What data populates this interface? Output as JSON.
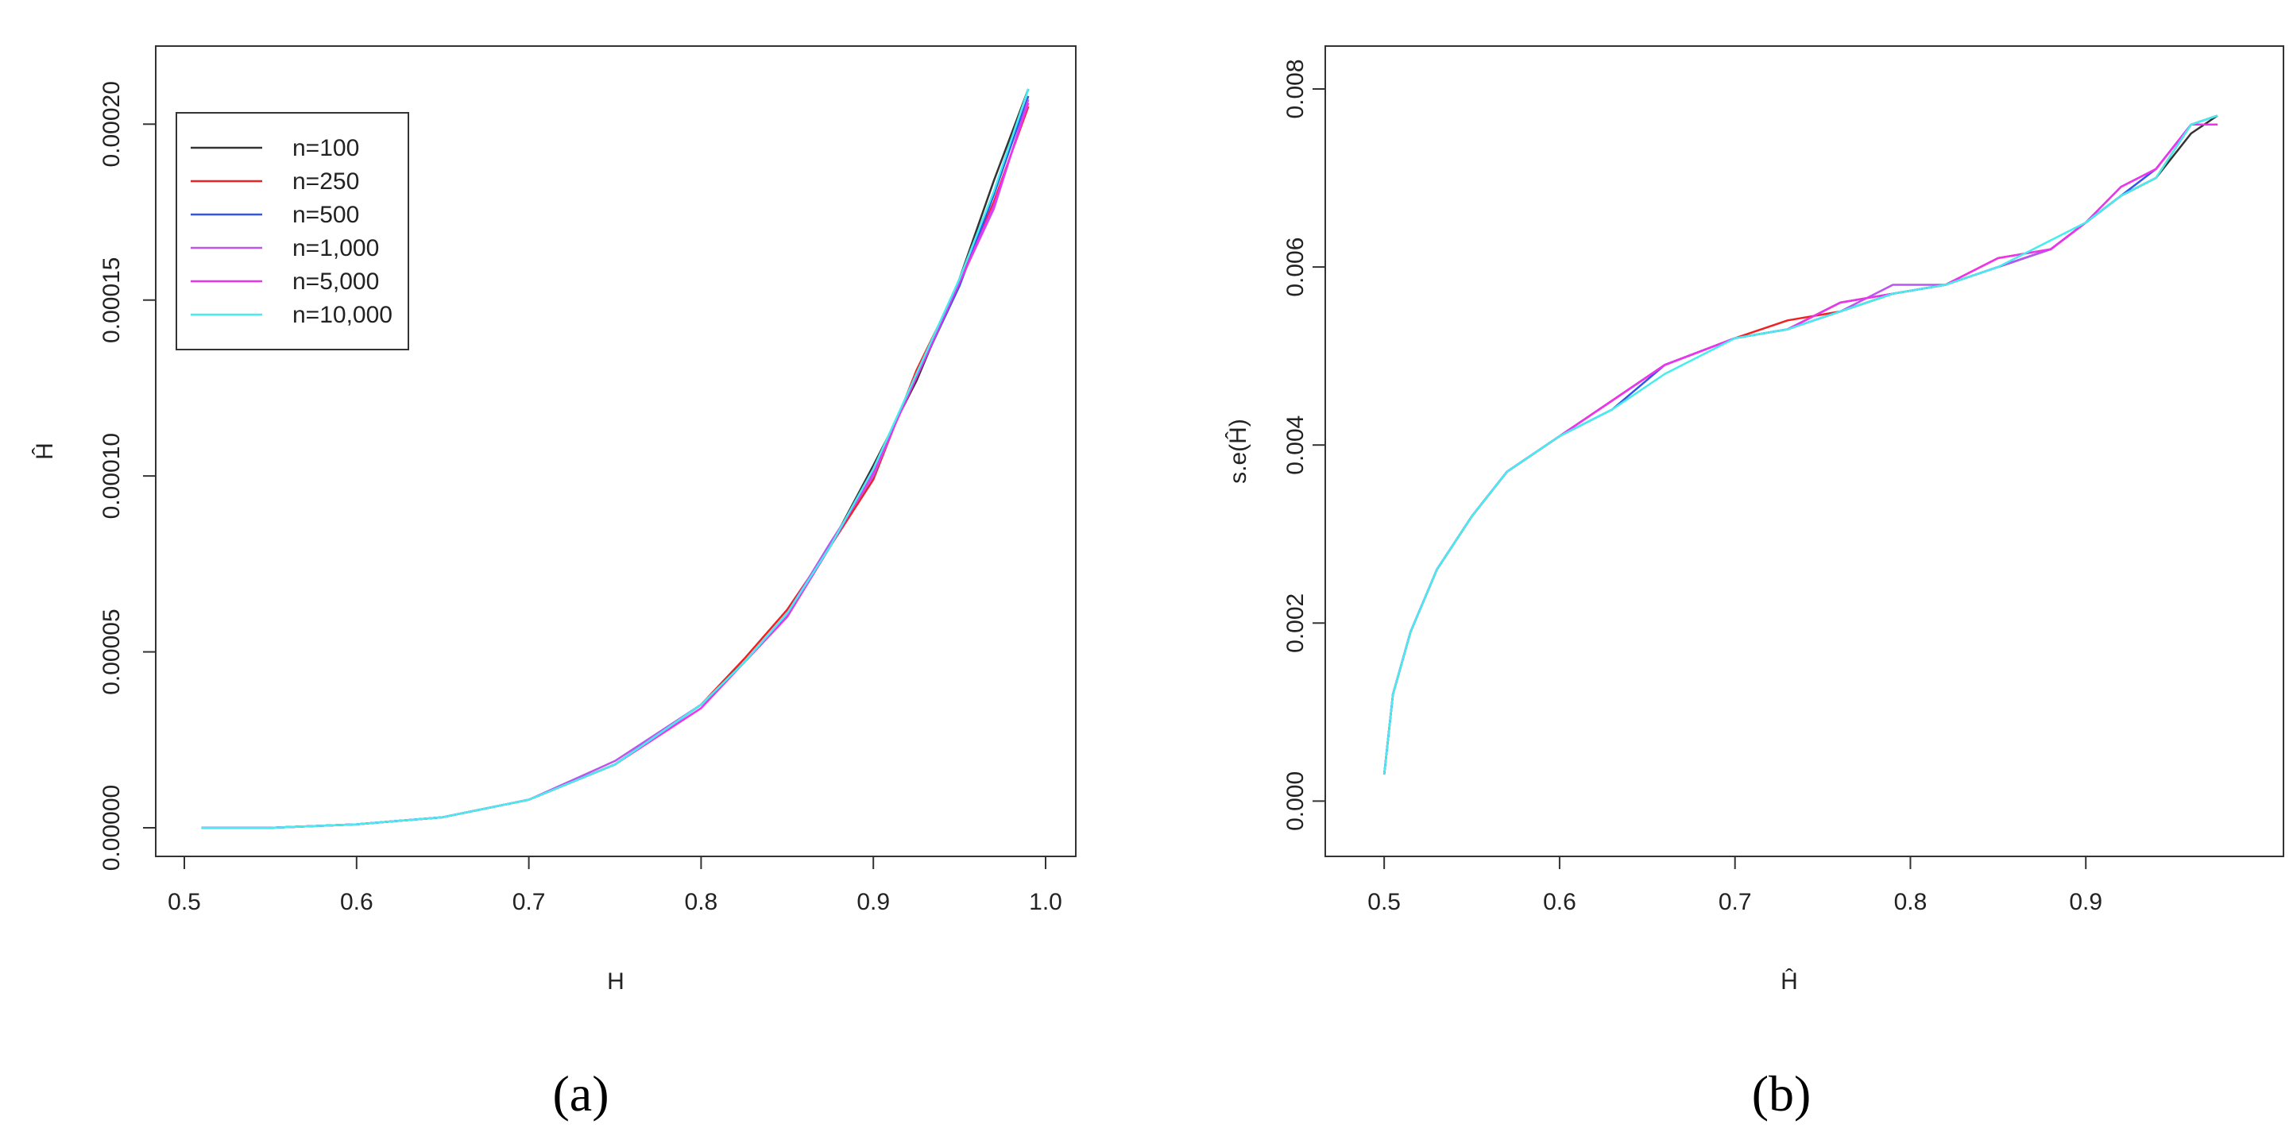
{
  "colors": {
    "n=100": "#333333",
    "n=250": "#ee2222",
    "n=500": "#3355ee",
    "n=1,000": "#bb55ee",
    "n=5,000": "#ee33ee",
    "n=10,000": "#44eeee"
  },
  "chart_data": [
    {
      "type": "line",
      "caption": "(a)",
      "xlabel": "H",
      "ylabel": "Ĥ",
      "xlim": [
        0.5,
        1.0
      ],
      "ylim": [
        0.0,
        0.00021
      ],
      "xticks": [
        0.5,
        0.6,
        0.7,
        0.8,
        0.9,
        1.0
      ],
      "xtick_labels": [
        "0.5",
        "0.6",
        "0.7",
        "0.8",
        "0.9",
        "1.0"
      ],
      "yticks": [
        0.0,
        5e-05,
        0.0001,
        0.00015,
        0.0002
      ],
      "ytick_labels": [
        "0.00000",
        "0.00005",
        "0.00010",
        "0.00015",
        "0.00020"
      ],
      "legend": {
        "position": "top-left",
        "entries": [
          "n=100",
          "n=250",
          "n=500",
          "n=1,000",
          "n=5,000",
          "n=10,000"
        ]
      },
      "x": [
        0.51,
        0.55,
        0.6,
        0.65,
        0.7,
        0.75,
        0.8,
        0.825,
        0.85,
        0.875,
        0.9,
        0.925,
        0.95,
        0.97,
        0.99
      ],
      "series": [
        {
          "name": "n=100",
          "values": [
            0.0,
            0.0,
            1e-06,
            3e-06,
            8e-06,
            1.8e-05,
            3.5e-05,
            4.7e-05,
            6e-05,
            8e-05,
            0.000103,
            0.000127,
            0.000156,
            0.000184,
            0.00021
          ]
        },
        {
          "name": "n=250",
          "values": [
            0.0,
            0.0,
            1e-06,
            3e-06,
            8e-06,
            1.8e-05,
            3.5e-05,
            4.8e-05,
            6.2e-05,
            8e-05,
            9.9e-05,
            0.00013,
            0.000155,
            0.000178,
            0.000205
          ]
        },
        {
          "name": "n=500",
          "values": [
            0.0,
            0.0,
            1e-06,
            3e-06,
            8e-06,
            1.8e-05,
            3.5e-05,
            4.7e-05,
            6.1e-05,
            8e-05,
            0.000102,
            0.000128,
            0.000154,
            0.00018,
            0.000208
          ]
        },
        {
          "name": "n=1,000",
          "values": [
            0.0,
            0.0,
            1e-06,
            3e-06,
            8e-06,
            1.9e-05,
            3.5e-05,
            4.7e-05,
            6.1e-05,
            8.1e-05,
            0.0001,
            0.000129,
            0.000155,
            0.000176,
            0.000207
          ]
        },
        {
          "name": "n=5,000",
          "values": [
            0.0,
            0.0,
            1e-06,
            3e-06,
            8e-06,
            1.8e-05,
            3.4e-05,
            4.7e-05,
            6e-05,
            8e-05,
            0.000101,
            0.000128,
            0.000155,
            0.000177,
            0.000206
          ]
        },
        {
          "name": "n=10,000",
          "values": [
            0.0,
            0.0,
            1e-06,
            3e-06,
            8e-06,
            1.8e-05,
            3.5e-05,
            4.7e-05,
            6.1e-05,
            8e-05,
            0.000102,
            0.000129,
            0.000156,
            0.000181,
            0.00021
          ]
        }
      ]
    },
    {
      "type": "line",
      "caption": "(b)",
      "xlabel": "Ĥ",
      "ylabel": "s.e(Ĥ)",
      "xlim": [
        0.48,
        1.0
      ],
      "ylim": [
        -0.0003,
        0.008
      ],
      "xticks": [
        0.5,
        0.6,
        0.7,
        0.8,
        0.9
      ],
      "xtick_labels": [
        "0.5",
        "0.6",
        "0.7",
        "0.8",
        "0.9"
      ],
      "yticks": [
        0.0,
        0.002,
        0.004,
        0.006,
        0.008
      ],
      "ytick_labels": [
        "0.000",
        "0.002",
        "0.004",
        "0.006",
        "0.008"
      ],
      "x": [
        0.5,
        0.505,
        0.515,
        0.53,
        0.55,
        0.57,
        0.6,
        0.63,
        0.66,
        0.7,
        0.73,
        0.76,
        0.79,
        0.82,
        0.85,
        0.88,
        0.9,
        0.92,
        0.94,
        0.96,
        0.975
      ],
      "series": [
        {
          "name": "n=100",
          "values": [
            0.0003,
            0.0012,
            0.0019,
            0.0026,
            0.0032,
            0.0037,
            0.0041,
            0.0045,
            0.0049,
            0.0052,
            0.0053,
            0.0056,
            0.0057,
            0.0058,
            0.006,
            0.0062,
            0.0065,
            0.0068,
            0.007,
            0.0075,
            0.0077
          ]
        },
        {
          "name": "n=250",
          "values": [
            0.0003,
            0.0012,
            0.0019,
            0.0026,
            0.0032,
            0.0037,
            0.0041,
            0.0045,
            0.0049,
            0.0052,
            0.0054,
            0.0055,
            0.0057,
            0.0058,
            0.0061,
            0.0062,
            0.0065,
            0.0068,
            0.007,
            0.0076,
            0.0076
          ]
        },
        {
          "name": "n=500",
          "values": [
            0.0003,
            0.0012,
            0.0019,
            0.0026,
            0.0032,
            0.0037,
            0.0041,
            0.0044,
            0.0049,
            0.0052,
            0.0053,
            0.0055,
            0.0057,
            0.0058,
            0.006,
            0.0062,
            0.0065,
            0.0068,
            0.0071,
            0.0076,
            0.0077
          ]
        },
        {
          "name": "n=1,000",
          "values": [
            0.0003,
            0.0012,
            0.0019,
            0.0026,
            0.0032,
            0.0037,
            0.0041,
            0.0045,
            0.0049,
            0.0052,
            0.0053,
            0.0055,
            0.0058,
            0.0058,
            0.006,
            0.0062,
            0.0065,
            0.0069,
            0.0071,
            0.0076,
            0.0077
          ]
        },
        {
          "name": "n=5,000",
          "values": [
            0.0003,
            0.0012,
            0.0019,
            0.0026,
            0.0032,
            0.0037,
            0.0041,
            0.0045,
            0.0049,
            0.0052,
            0.0053,
            0.0056,
            0.0057,
            0.0058,
            0.0061,
            0.0062,
            0.0065,
            0.0069,
            0.0071,
            0.0076,
            0.0076
          ]
        },
        {
          "name": "n=10,000",
          "values": [
            0.0003,
            0.0012,
            0.0019,
            0.0026,
            0.0032,
            0.0037,
            0.0041,
            0.0044,
            0.0048,
            0.0052,
            0.0053,
            0.0055,
            0.0057,
            0.0058,
            0.006,
            0.0063,
            0.0065,
            0.0068,
            0.007,
            0.0076,
            0.0077
          ]
        }
      ]
    }
  ]
}
